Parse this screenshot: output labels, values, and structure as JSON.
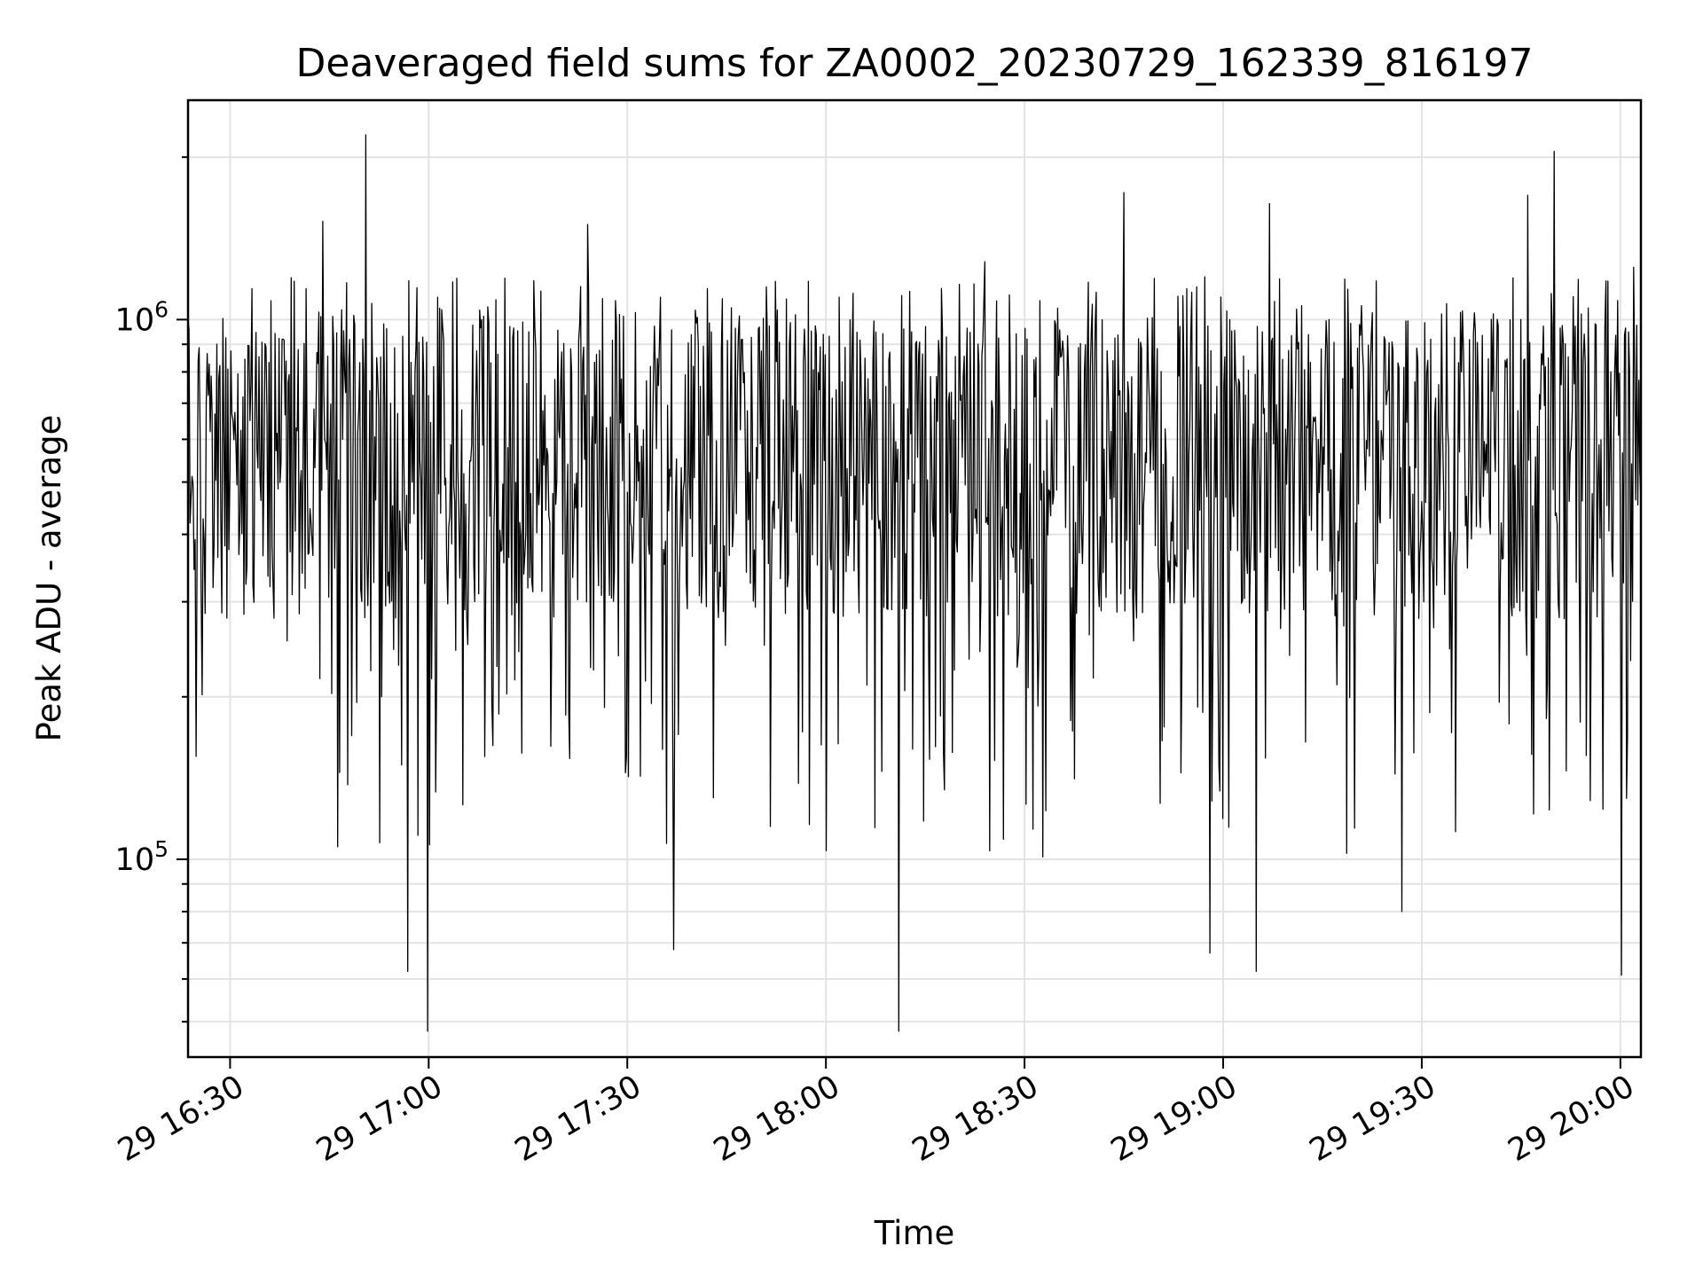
{
  "chart_data": {
    "type": "line",
    "title": "Deaveraged field sums for ZA0002_20230729_162339_816197",
    "xlabel": "Time",
    "ylabel": "Peak ADU - average",
    "xscale": "time",
    "yscale": "log",
    "xlim": [
      "2023-07-29 16:23:39",
      "2023-07-29 20:03:06"
    ],
    "ylim": [
      43000,
      2550000
    ],
    "grid": true,
    "grid_minor": true,
    "legend": "none",
    "line_color": "#000000",
    "x_tick_labels": [
      "29 16:30",
      "29 17:00",
      "29 17:30",
      "29 18:00",
      "29 18:30",
      "29 19:00",
      "29 19:30",
      "29 20:00"
    ],
    "y_tick_labels": [
      {
        "base": "10",
        "exp": "5"
      },
      {
        "base": "10",
        "exp": "6"
      }
    ],
    "series": [
      {
        "x": [
          "2023-07-29 16:23:39",
          "2023-07-29 16:27:00",
          "2023-07-29 16:28:00",
          "2023-07-29 16:33:00",
          "2023-07-29 16:38:00",
          "2023-07-29 16:40:00",
          "2023-07-29 16:44:00",
          "2023-07-29 16:47:00",
          "2023-07-29 16:50:30",
          "2023-07-29 16:55:00",
          "2023-07-29 16:56:50",
          "2023-07-29 16:57:30",
          "2023-07-29 16:59:50",
          "2023-07-29 17:05:00",
          "2023-07-29 17:08:00",
          "2023-07-29 17:10:00",
          "2023-07-29 17:13:00",
          "2023-07-29 17:18:00",
          "2023-07-29 17:24:00",
          "2023-07-29 17:27:00",
          "2023-07-29 17:35:00",
          "2023-07-29 17:37:00",
          "2023-07-29 17:38:00",
          "2023-07-29 17:43:00",
          "2023-07-29 17:51:00",
          "2023-07-29 17:56:00",
          "2023-07-29 18:02:00",
          "2023-07-29 18:08:00",
          "2023-07-29 18:11:00",
          "2023-07-29 18:20:00",
          "2023-07-29 18:24:00",
          "2023-07-29 18:28:00",
          "2023-07-29 18:35:00",
          "2023-07-29 18:38:00",
          "2023-07-29 18:45:00",
          "2023-07-29 18:49:00",
          "2023-07-29 18:56:00",
          "2023-07-29 18:58:00",
          "2023-07-29 19:01:00",
          "2023-07-29 19:05:00",
          "2023-07-29 19:07:00",
          "2023-07-29 19:12:00",
          "2023-07-29 19:16:00",
          "2023-07-29 19:20:00",
          "2023-07-29 19:27:00",
          "2023-07-29 19:30:00",
          "2023-07-29 19:36:00",
          "2023-07-29 19:42:00",
          "2023-07-29 19:46:00",
          "2023-07-29 19:50:00",
          "2023-07-29 19:55:00",
          "2023-07-29 19:59:00",
          "2023-07-29 20:00:10",
          "2023-07-29 20:02:00",
          "2023-07-29 20:03:06"
        ],
        "y": [
          1000000,
          620000,
          900000,
          650000,
          920000,
          630000,
          1520000,
          600000,
          2200000,
          280000,
          62000,
          500000,
          48000,
          680000,
          1000000,
          500000,
          215000,
          560000,
          1500000,
          450000,
          1100000,
          68000,
          410000,
          130000,
          1150000,
          370000,
          1100000,
          410000,
          48000,
          520000,
          1280000,
          380000,
          1050000,
          370000,
          1720000,
          520000,
          1150000,
          67000,
          1000000,
          62000,
          1640000,
          440000,
          1000000,
          420000,
          80000,
          460000,
          800000,
          420000,
          1700000,
          2050000,
          320000,
          620000,
          61000,
          1250000,
          460000
        ]
      }
    ]
  }
}
